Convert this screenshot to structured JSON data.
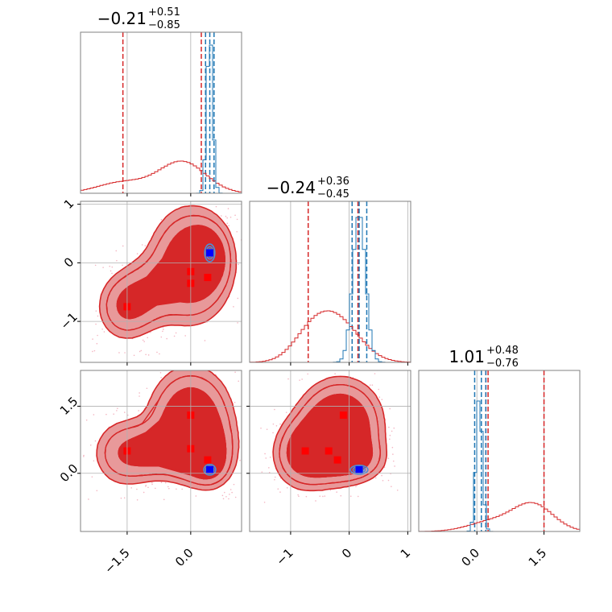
{
  "chart_data": {
    "type": "corner",
    "grid": true,
    "colors": {
      "red_line": "#d62728",
      "red_dark": "#d62728",
      "red_light": "#e8999a",
      "red_dots": "#f4b6c2",
      "blue_line": "#1f77b4",
      "blue_ring": "#4a90d9",
      "marker_red": "#ff0000",
      "marker_blue": "#0000ff",
      "frame": "#808080",
      "grid": "#b0b0b0"
    },
    "parameters": [
      {
        "range": [
          -2.6,
          1.2
        ],
        "ticks": [
          -1.5,
          0.0
        ],
        "tick_labels": [
          "−1.5",
          "0.0"
        ],
        "title_value": "−0.21",
        "title_plus": "+0.51",
        "title_minus": "−0.85",
        "red_quantiles": [
          -1.6,
          0.25,
          0.35
        ],
        "blue_quantiles": [
          0.35,
          0.45,
          0.55
        ]
      },
      {
        "range": [
          -1.7,
          1.05
        ],
        "ticks": [
          -1,
          0,
          1
        ],
        "tick_labels": [
          "−1",
          "0",
          "1"
        ],
        "title_value": "−0.24",
        "title_plus": "+0.36",
        "title_minus": "−0.45",
        "red_quantiles": [
          -0.7,
          0.05,
          0.15
        ],
        "blue_quantiles": [
          0.05,
          0.17,
          0.3
        ]
      },
      {
        "range": [
          -1.3,
          2.3
        ],
        "ticks": [
          0.0,
          1.5
        ],
        "tick_labels": [
          "0.0",
          "1.5"
        ],
        "title_value": "1.01",
        "title_plus": "+0.48",
        "title_minus": "−0.76",
        "red_quantiles": [
          0.25,
          0.2,
          1.5
        ],
        "blue_quantiles": [
          -0.05,
          0.1,
          0.2
        ]
      }
    ],
    "red_markers": {
      "p1_vs_p0": [
        [
          0.0,
          -0.15
        ],
        [
          0.4,
          -0.25
        ],
        [
          0.0,
          -0.35
        ],
        [
          -1.5,
          -0.75
        ]
      ],
      "p2_vs_p0": [
        [
          0.0,
          1.3
        ],
        [
          0.0,
          0.55
        ],
        [
          0.4,
          0.3
        ],
        [
          -1.5,
          0.5
        ]
      ],
      "p2_vs_p1": [
        [
          -0.1,
          1.3
        ],
        [
          -0.35,
          0.5
        ],
        [
          -0.75,
          0.5
        ],
        [
          -0.2,
          0.3
        ]
      ]
    },
    "blue_markers": {
      "p1_vs_p0": [
        [
          0.45,
          0.17
        ]
      ],
      "p2_vs_p0": [
        [
          0.45,
          0.08
        ]
      ],
      "p2_vs_p1": [
        [
          0.17,
          0.08
        ]
      ]
    }
  }
}
